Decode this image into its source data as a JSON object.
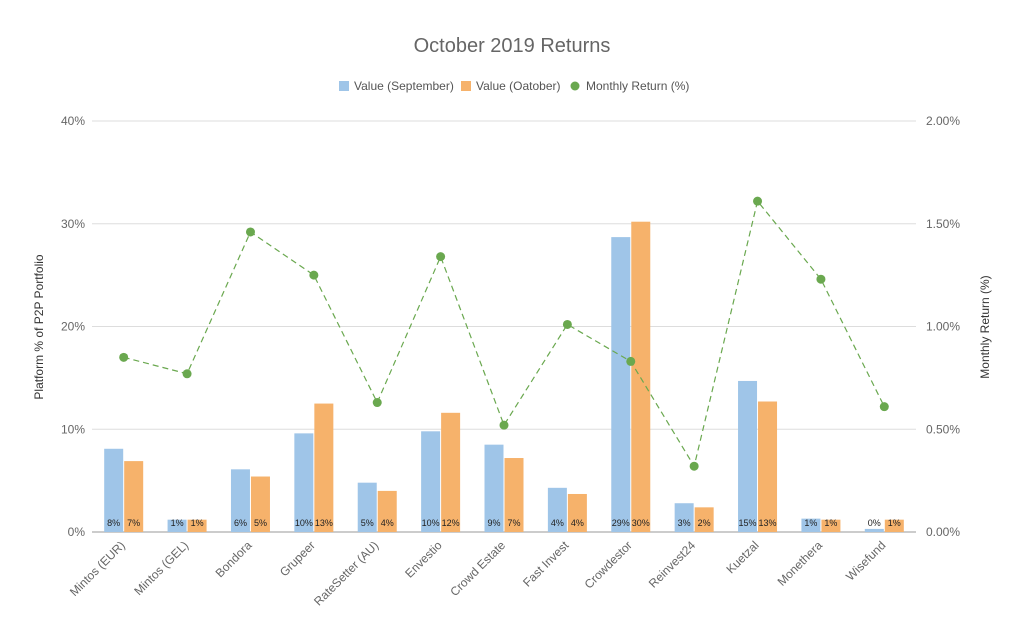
{
  "chart_data": {
    "type": "bar",
    "title": "October 2019 Returns",
    "ylabel": "Platform % of P2P Portfolio",
    "ylabel_right": "Monthly Return (%)",
    "xlabel": "",
    "ylim": [
      0,
      40
    ],
    "ylim_right": [
      0,
      2
    ],
    "yticks": [
      "0%",
      "10%",
      "20%",
      "30%",
      "40%"
    ],
    "yticks_right": [
      "0.00%",
      "0.50%",
      "1.00%",
      "1.50%",
      "2.00%"
    ],
    "grid": true,
    "legend_position": "top",
    "categories": [
      "Mintos (EUR)",
      "Mintos (GEL)",
      "Bondora",
      "Grupeer",
      "RateSetter (AU)",
      "Envestio",
      "Crowd Estate",
      "Fast Invest",
      "Crowdestor",
      "Reinvest24",
      "Kuetzal",
      "Monethera",
      "Wisefund"
    ],
    "series": [
      {
        "name": "Value (September)",
        "type": "bar",
        "axis": "left",
        "color": "#9fc5e8",
        "values": [
          8.1,
          1.2,
          6.1,
          9.6,
          4.8,
          9.8,
          8.5,
          4.3,
          28.7,
          2.8,
          14.7,
          1.3,
          0.3
        ],
        "labels": [
          "8%",
          "1%",
          "6%",
          "10%",
          "5%",
          "10%",
          "9%",
          "4%",
          "29%",
          "3%",
          "15%",
          "1%",
          "0%"
        ]
      },
      {
        "name": "Value (Oatober)",
        "type": "bar",
        "axis": "left",
        "color": "#f6b26b",
        "values": [
          6.9,
          1.2,
          5.4,
          12.5,
          4.0,
          11.6,
          7.2,
          3.7,
          30.2,
          2.4,
          12.7,
          1.2,
          1.2
        ],
        "labels": [
          "7%",
          "1%",
          "5%",
          "13%",
          "4%",
          "12%",
          "7%",
          "4%",
          "30%",
          "2%",
          "13%",
          "1%",
          "1%"
        ]
      },
      {
        "name": "Monthly Return (%)",
        "type": "line",
        "axis": "right",
        "color": "#6aa84f",
        "line_style": "dashed",
        "values": [
          0.85,
          0.77,
          1.46,
          1.25,
          0.63,
          1.34,
          0.52,
          1.01,
          0.83,
          0.32,
          1.61,
          1.23,
          0.61
        ]
      }
    ]
  }
}
